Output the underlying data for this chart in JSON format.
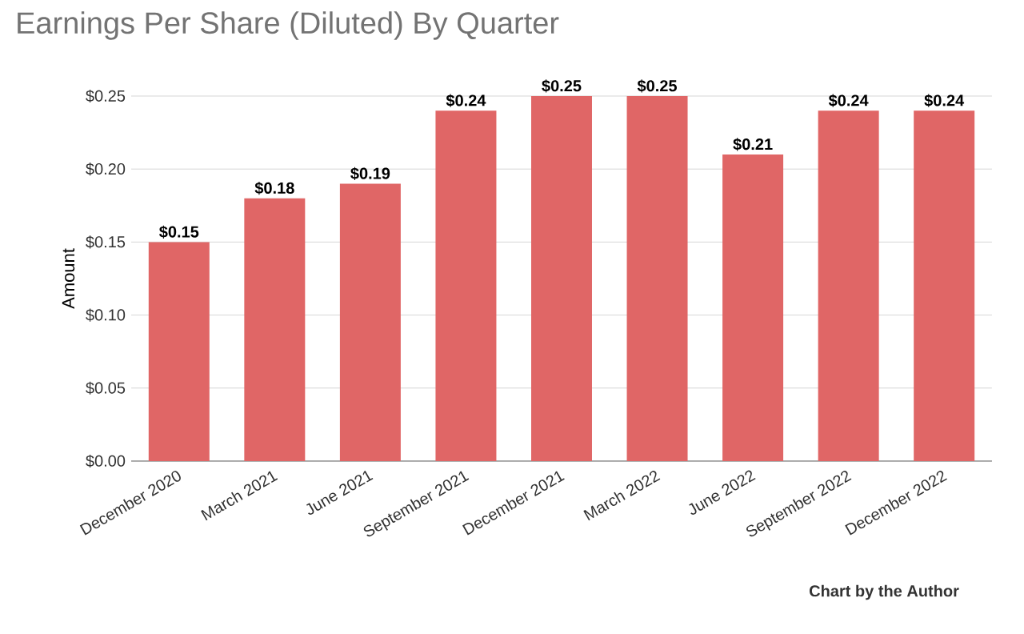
{
  "chart_data": {
    "type": "bar",
    "title": "Earnings Per Share (Diluted) By Quarter",
    "ylabel": "Amount",
    "categories": [
      "December 2020",
      "March 2021",
      "June 2021",
      "September 2021",
      "December 2021",
      "March 2022",
      "June 2022",
      "September 2022",
      "December 2022"
    ],
    "values": [
      0.15,
      0.18,
      0.19,
      0.24,
      0.25,
      0.25,
      0.21,
      0.24,
      0.24
    ],
    "value_labels": [
      "$0.15",
      "$0.18",
      "$0.19",
      "$0.24",
      "$0.25",
      "$0.25",
      "$0.21",
      "$0.24",
      "$0.24"
    ],
    "color": "#e06666",
    "ylim": [
      0,
      0.25
    ],
    "yticks": [
      {
        "value": 0,
        "label": "$0.00"
      },
      {
        "value": 0.05,
        "label": "$0.05"
      },
      {
        "value": 0.1,
        "label": "$0.10"
      },
      {
        "value": 0.15,
        "label": "$0.15"
      },
      {
        "value": 0.2,
        "label": "$0.20"
      },
      {
        "value": 0.25,
        "label": "$0.25"
      }
    ],
    "grid": "y",
    "annotations": [
      "Chart by the Author"
    ]
  }
}
